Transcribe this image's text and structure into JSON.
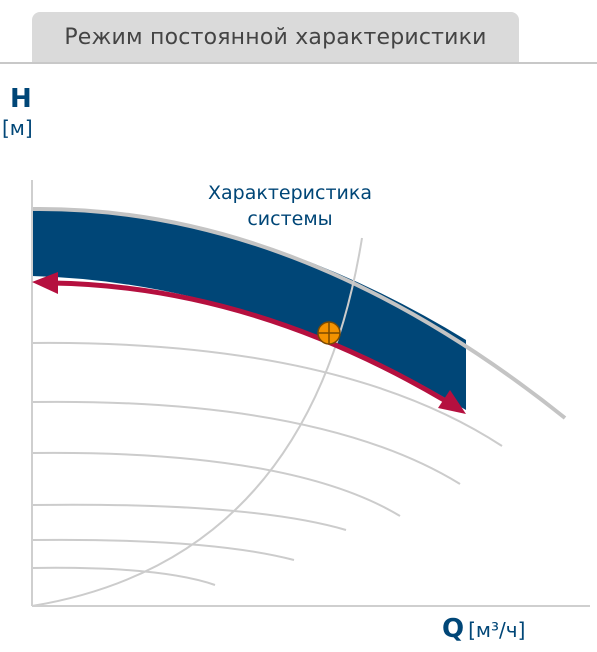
{
  "header": {
    "title": "Режим постоянной характеристики"
  },
  "axes": {
    "y_label": "H",
    "y_unit": "[м]",
    "x_label": "Q",
    "x_unit": "[м³/ч]"
  },
  "system_curve": {
    "label_line1": "Характеристика",
    "label_line2": "системы"
  },
  "colors": {
    "band": "#004677",
    "arrow": "#b5103f",
    "operating_point": "#f39200",
    "curves": "#cccccc",
    "text": "#004677"
  },
  "icons": [
    "operating-point-icon",
    "left-arrowhead-icon",
    "right-arrowhead-icon"
  ]
}
